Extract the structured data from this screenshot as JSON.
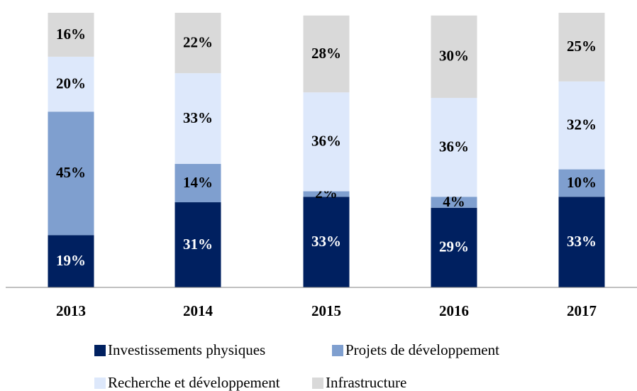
{
  "chart_data": {
    "type": "stacked_bar",
    "categories": [
      "2013",
      "2014",
      "2015",
      "2016",
      "2017"
    ],
    "series": [
      {
        "name": "Investissements physiques",
        "color": "#002060",
        "values": [
          19,
          31,
          33,
          29,
          33
        ],
        "value_labels": [
          "19%",
          "31%",
          "33%",
          "29%",
          "33%"
        ]
      },
      {
        "name": "Projets de développement",
        "color": "#7f9fcf",
        "values": [
          45,
          14,
          2,
          4,
          10
        ],
        "value_labels": [
          "45%",
          "14%",
          "2%",
          "4%",
          "10%"
        ]
      },
      {
        "name": "Recherche et développement",
        "color": "#dde8fb",
        "values": [
          20,
          33,
          36,
          36,
          32
        ],
        "value_labels": [
          "20%",
          "33%",
          "36%",
          "36%",
          "32%"
        ]
      },
      {
        "name": "Infrastructure",
        "color": "#d9d9d9",
        "values": [
          16,
          22,
          28,
          30,
          25
        ],
        "value_labels": [
          "16%",
          "22%",
          "28%",
          "30%",
          "25%"
        ]
      }
    ],
    "ylim": [
      0,
      100
    ],
    "legend": "bottom"
  }
}
